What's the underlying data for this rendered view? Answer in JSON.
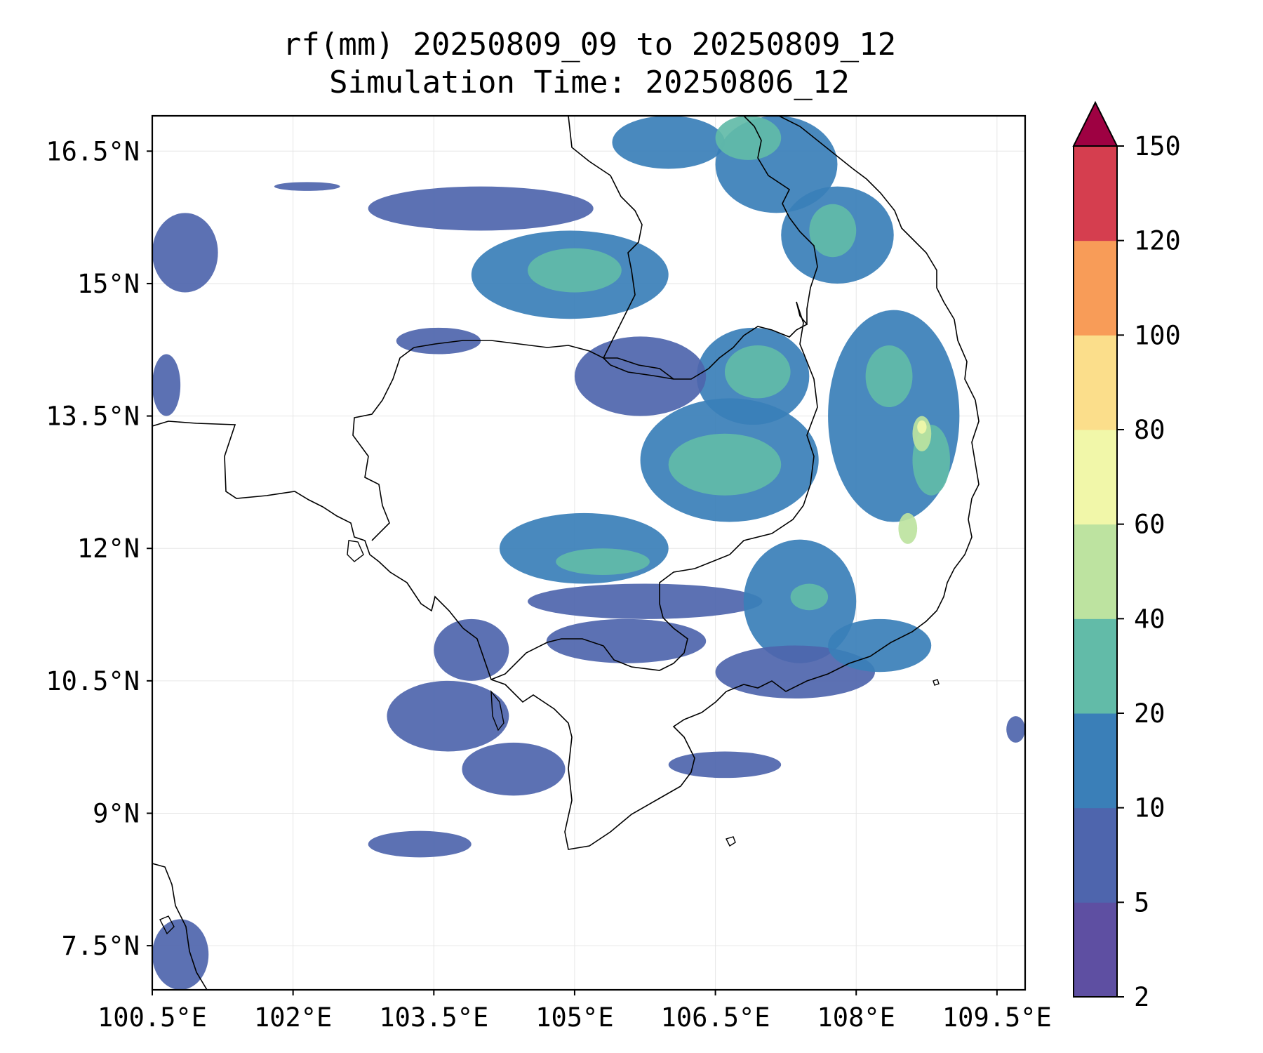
{
  "title": {
    "line1": "rf(mm) 20250809_09 to 20250809_12",
    "line2": "Simulation Time: 20250806_12"
  },
  "map": {
    "lon_range": [
      100.5,
      109.8
    ],
    "lat_range": [
      7.0,
      16.9
    ],
    "lon_ticks": [
      {
        "value": 100.5,
        "label": "100.5°E"
      },
      {
        "value": 102.0,
        "label": "102°E"
      },
      {
        "value": 103.5,
        "label": "103.5°E"
      },
      {
        "value": 105.0,
        "label": "105°E"
      },
      {
        "value": 106.5,
        "label": "106.5°E"
      },
      {
        "value": 108.0,
        "label": "108°E"
      },
      {
        "value": 109.5,
        "label": "109.5°E"
      }
    ],
    "lat_ticks": [
      {
        "value": 16.5,
        "label": "16.5°N"
      },
      {
        "value": 15.0,
        "label": "15°N"
      },
      {
        "value": 13.5,
        "label": "13.5°N"
      },
      {
        "value": 12.0,
        "label": "12°N"
      },
      {
        "value": 10.5,
        "label": "10.5°N"
      },
      {
        "value": 9.0,
        "label": "9°N"
      },
      {
        "value": 7.5,
        "label": "7.5°N"
      }
    ],
    "gridlines": true
  },
  "colorbar": {
    "levels": [
      {
        "value": 2,
        "label": "2"
      },
      {
        "value": 5,
        "label": "5"
      },
      {
        "value": 10,
        "label": "10"
      },
      {
        "value": 20,
        "label": "20"
      },
      {
        "value": 40,
        "label": "40"
      },
      {
        "value": 60,
        "label": "60"
      },
      {
        "value": 80,
        "label": "80"
      },
      {
        "value": 100,
        "label": "100"
      },
      {
        "value": 120,
        "label": "120"
      },
      {
        "value": 150,
        "label": "150"
      }
    ],
    "colors": [
      "#5e4fa2",
      "#4e65ad",
      "#3a7fb8",
      "#62bba8",
      "#bde3a0",
      "#f1f7a9",
      "#fbde8b",
      "#f89c58",
      "#d53e4f"
    ],
    "extend_color": "#9e0142",
    "extend": "max"
  },
  "rain_regions": [
    {
      "lon": [
        101.8,
        102.5
      ],
      "lat": [
        16.05,
        16.15
      ],
      "level": 1
    },
    {
      "lon": [
        102.8,
        105.2
      ],
      "lat": [
        15.6,
        16.1
      ],
      "level": 1
    },
    {
      "lon": [
        103.9,
        106.0
      ],
      "lat": [
        14.6,
        15.6
      ],
      "level": 2
    },
    {
      "lon": [
        104.5,
        105.5
      ],
      "lat": [
        14.9,
        15.4
      ],
      "level": 3
    },
    {
      "lon": [
        105.4,
        106.6
      ],
      "lat": [
        16.3,
        16.9
      ],
      "level": 2
    },
    {
      "lon": [
        106.5,
        107.8
      ],
      "lat": [
        15.8,
        16.9
      ],
      "level": 2
    },
    {
      "lon": [
        106.5,
        107.2
      ],
      "lat": [
        16.4,
        16.9
      ],
      "level": 3
    },
    {
      "lon": [
        107.2,
        108.4
      ],
      "lat": [
        15.0,
        16.1
      ],
      "level": 2
    },
    {
      "lon": [
        107.5,
        108.0
      ],
      "lat": [
        15.3,
        15.9
      ],
      "level": 3
    },
    {
      "lon": [
        106.3,
        107.5
      ],
      "lat": [
        13.4,
        14.5
      ],
      "level": 2
    },
    {
      "lon": [
        106.6,
        107.3
      ],
      "lat": [
        13.7,
        14.3
      ],
      "level": 3
    },
    {
      "lon": [
        107.7,
        109.1
      ],
      "lat": [
        12.3,
        14.7
      ],
      "level": 2
    },
    {
      "lon": [
        108.1,
        108.6
      ],
      "lat": [
        13.6,
        14.3
      ],
      "level": 3
    },
    {
      "lon": [
        108.6,
        109.0
      ],
      "lat": [
        12.6,
        13.4
      ],
      "level": 3
    },
    {
      "lon": [
        108.6,
        108.8
      ],
      "lat": [
        13.1,
        13.5
      ],
      "level": 4
    },
    {
      "lon": [
        108.65,
        108.75
      ],
      "lat": [
        13.3,
        13.45
      ],
      "level": 5
    },
    {
      "lon": [
        108.45,
        108.65
      ],
      "lat": [
        12.05,
        12.4
      ],
      "level": 4
    },
    {
      "lon": [
        105.7,
        107.6
      ],
      "lat": [
        12.3,
        13.7
      ],
      "level": 2
    },
    {
      "lon": [
        106.0,
        107.2
      ],
      "lat": [
        12.6,
        13.3
      ],
      "level": 3
    },
    {
      "lon": [
        105.0,
        106.4
      ],
      "lat": [
        13.5,
        14.4
      ],
      "level": 1
    },
    {
      "lon": [
        104.2,
        106.0
      ],
      "lat": [
        11.6,
        12.4
      ],
      "level": 2
    },
    {
      "lon": [
        104.8,
        105.8
      ],
      "lat": [
        11.7,
        12.0
      ],
      "level": 3
    },
    {
      "lon": [
        104.5,
        107.0
      ],
      "lat": [
        11.2,
        11.6
      ],
      "level": 1
    },
    {
      "lon": [
        106.8,
        108.0
      ],
      "lat": [
        10.7,
        12.1
      ],
      "level": 2
    },
    {
      "lon": [
        107.3,
        107.7
      ],
      "lat": [
        11.3,
        11.6
      ],
      "level": 3
    },
    {
      "lon": [
        106.5,
        108.2
      ],
      "lat": [
        10.3,
        10.9
      ],
      "level": 1
    },
    {
      "lon": [
        107.7,
        108.8
      ],
      "lat": [
        10.6,
        11.2
      ],
      "level": 2
    },
    {
      "lon": [
        103.0,
        104.3
      ],
      "lat": [
        9.7,
        10.5
      ],
      "level": 1
    },
    {
      "lon": [
        103.5,
        104.3
      ],
      "lat": [
        10.5,
        11.2
      ],
      "level": 1
    },
    {
      "lon": [
        103.8,
        104.9
      ],
      "lat": [
        9.2,
        9.8
      ],
      "level": 1
    },
    {
      "lon": [
        106.0,
        107.2
      ],
      "lat": [
        9.4,
        9.7
      ],
      "level": 1
    },
    {
      "lon": [
        102.8,
        103.9
      ],
      "lat": [
        8.5,
        8.8
      ],
      "level": 1
    },
    {
      "lon": [
        100.5,
        101.2
      ],
      "lat": [
        14.9,
        15.8
      ],
      "level": 1
    },
    {
      "lon": [
        100.5,
        100.8
      ],
      "lat": [
        13.5,
        14.2
      ],
      "level": 1
    },
    {
      "lon": [
        100.5,
        101.1
      ],
      "lat": [
        7.0,
        7.8
      ],
      "level": 1
    },
    {
      "lon": [
        109.6,
        109.8
      ],
      "lat": [
        9.8,
        10.1
      ],
      "level": 1
    },
    {
      "lon": [
        103.1,
        104.0
      ],
      "lat": [
        14.2,
        14.5
      ],
      "level": 1
    },
    {
      "lon": [
        104.7,
        106.4
      ],
      "lat": [
        10.7,
        11.2
      ],
      "level": 1
    }
  ]
}
